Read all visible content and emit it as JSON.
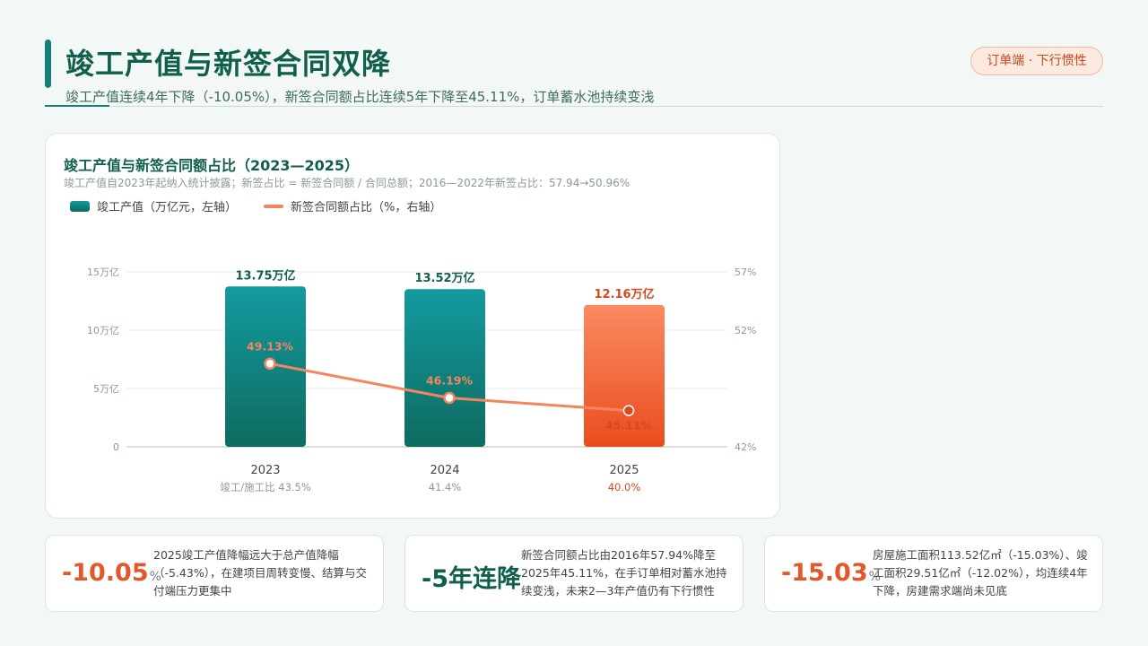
{
  "header": {
    "title": "竣工产值与新签合同双降",
    "subtitle": "竣工产值连续4年下降（-10.05%），新签合同额占比连续5年下降至45.11%，订单蓄水池持续变浅",
    "tag": "订单端 · 下行惯性"
  },
  "chart_panel": {
    "title": "竣工产值与新签合同额占比（2023—2025）",
    "note": "竣工产值自2023年起纳入统计披露；新签占比 = 新签合同额 / 合同总额；2016—2022年新签占比：57.94→50.96%",
    "legend": [
      "竣工产值（万亿元，左轴）",
      "新签合同额占比（%，右轴）"
    ]
  },
  "chart_data": {
    "type": "bar",
    "categories": [
      "2023",
      "2024",
      "2025"
    ],
    "category_sublabels": [
      "竣工/施工比 43.5%",
      "41.4%",
      "40.0%"
    ],
    "series": [
      {
        "name": "竣工产值（万亿元，左轴）",
        "type": "bar",
        "axis": "left",
        "values": [
          13.75,
          13.52,
          12.16
        ],
        "labels": [
          "13.75万亿",
          "13.52万亿",
          "12.16万亿"
        ]
      },
      {
        "name": "新签合同额占比（%，右轴）",
        "type": "line",
        "axis": "right",
        "values": [
          49.13,
          46.19,
          45.11
        ],
        "labels": [
          "49.13%",
          "46.19%",
          "45.11%"
        ]
      }
    ],
    "left_axis": {
      "ticks": [
        0,
        5,
        10,
        15
      ],
      "tick_labels": [
        "0",
        "5万亿",
        "10万亿",
        "15万亿"
      ],
      "range": [
        0,
        15
      ]
    },
    "right_axis": {
      "ticks": [
        42,
        52,
        57
      ],
      "tick_labels": [
        "42%",
        "52%",
        "57%"
      ],
      "range": [
        42,
        57
      ]
    },
    "highlight_index": 2,
    "colors": {
      "bar": "#0e7d7f",
      "bar_highlight": "#f0623a",
      "line": "#f5855f",
      "highlight_text": "#d9481c",
      "bar_label": "#0f5f4c"
    },
    "grid": true
  },
  "stats": [
    {
      "value": "-10.05",
      "unit": "%",
      "text": "2025竣工产值降幅远大于总产值降幅（-5.43%），在建项目周转变慢、结算与交付端压力更集中"
    },
    {
      "value": "-5年连降",
      "unit": "",
      "text": "新签合同额占比由2016年57.94%降至2025年45.11%，在手订单相对蓄水池持续变浅，未来2—3年产值仍有下行惯性"
    },
    {
      "value": "-15.03",
      "unit": "%",
      "text": "房屋施工面积113.52亿㎡（-15.03%）、竣工面积29.51亿㎡（-12.02%），均连续4年下降，房建需求端尚未见底"
    }
  ]
}
